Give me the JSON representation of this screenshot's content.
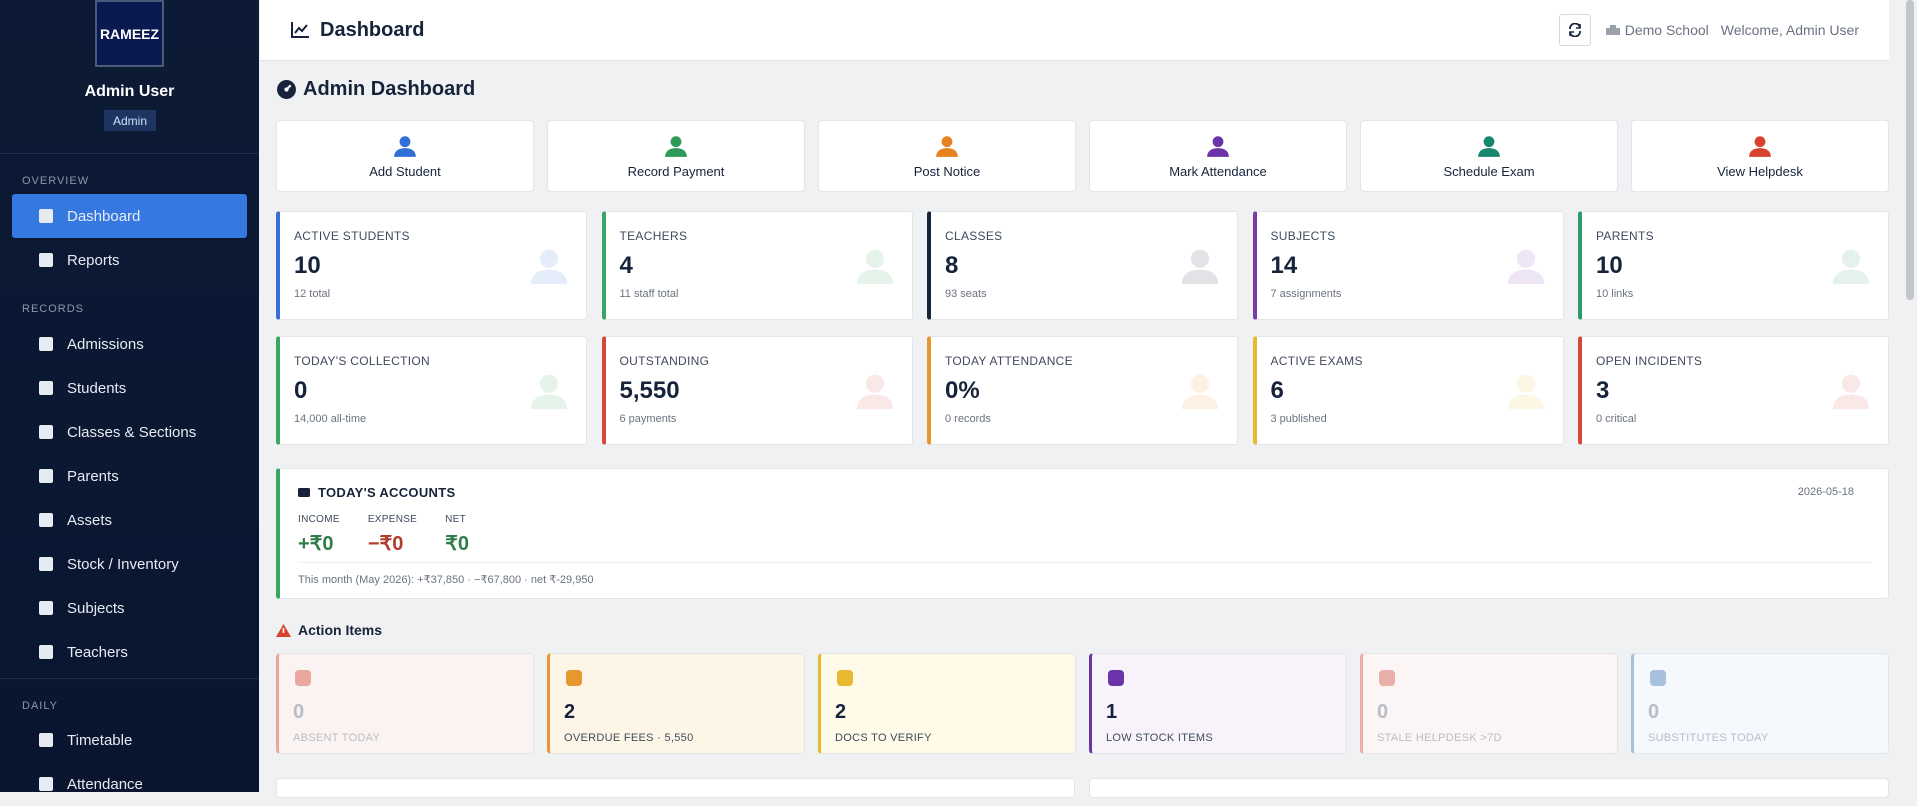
{
  "sidebar": {
    "logo": "RAMEEZ",
    "user_name": "Admin User",
    "role": "Admin",
    "sections": [
      {
        "title": "OVERVIEW",
        "items": [
          "Dashboard",
          "Reports"
        ]
      },
      {
        "title": "RECORDS",
        "items": [
          "Admissions",
          "Students",
          "Classes & Sections",
          "Parents",
          "Assets",
          "Stock / Inventory",
          "Subjects",
          "Teachers"
        ]
      },
      {
        "title": "DAILY",
        "items": [
          "Timetable",
          "Attendance"
        ]
      }
    ]
  },
  "header": {
    "title": "Dashboard",
    "school": "Demo School",
    "welcome": "Welcome, Admin User"
  },
  "page_title": "Admin Dashboard",
  "quick_actions": [
    {
      "label": "Add Student",
      "color": "#2f6fd6"
    },
    {
      "label": "Record Payment",
      "color": "#2e9a57"
    },
    {
      "label": "Post Notice",
      "color": "#e8821e"
    },
    {
      "label": "Mark Attendance",
      "color": "#6b34a8"
    },
    {
      "label": "Schedule Exam",
      "color": "#17876f"
    },
    {
      "label": "View Helpdesk",
      "color": "#d9412f"
    }
  ],
  "stats": [
    [
      {
        "label": "ACTIVE STUDENTS",
        "value": "10",
        "sub": "12 total",
        "color": "#3a6fd8"
      },
      {
        "label": "TEACHERS",
        "value": "4",
        "sub": "11 staff total",
        "color": "#3aa564"
      },
      {
        "label": "CLASSES",
        "value": "8",
        "sub": "93 seats",
        "color": "#16233b"
      },
      {
        "label": "SUBJECTS",
        "value": "14",
        "sub": "7 assignments",
        "color": "#7a3aa8"
      },
      {
        "label": "PARENTS",
        "value": "10",
        "sub": "10 links",
        "color": "#2f9a6a"
      }
    ],
    [
      {
        "label": "TODAY'S COLLECTION",
        "value": "0",
        "sub": "14,000 all-time",
        "color": "#3aa564"
      },
      {
        "label": "OUTSTANDING",
        "value": "5,550",
        "sub": "6 payments",
        "color": "#d9473a"
      },
      {
        "label": "TODAY ATTENDANCE",
        "value": "0%",
        "sub": "0 records",
        "color": "#e8962e"
      },
      {
        "label": "ACTIVE EXAMS",
        "value": "6",
        "sub": "3 published",
        "color": "#e8b92e"
      },
      {
        "label": "OPEN INCIDENTS",
        "value": "3",
        "sub": "0 critical",
        "color": "#d9473a"
      }
    ]
  ],
  "accounts": {
    "title": "TODAY'S ACCOUNTS",
    "date": "2026-05-18",
    "items": [
      {
        "label": "INCOME",
        "value": "+₹0",
        "color": "#2e7d4a"
      },
      {
        "label": "EXPENSE",
        "value": "−₹0",
        "color": "#b33a2a"
      },
      {
        "label": "NET",
        "value": "₹0",
        "color": "#2e7d4a"
      }
    ],
    "footer": "This month (May 2026): +₹37,850 · −₹67,800 · net ₹-29,950"
  },
  "action_items": {
    "title": "Action Items",
    "cards": [
      {
        "value": "0",
        "label": "ABSENT TODAY",
        "color": "#e8a8a0",
        "bg": "#fbf3f2",
        "faded": true
      },
      {
        "value": "2",
        "label": "OVERDUE FEES · 5,550",
        "color": "#e8962e",
        "bg": "#fdf6e6",
        "faded": false
      },
      {
        "value": "2",
        "label": "DOCS TO VERIFY",
        "color": "#e8b92e",
        "bg": "#fffbe8",
        "faded": false
      },
      {
        "value": "1",
        "label": "LOW STOCK ITEMS",
        "color": "#6b34a8",
        "bg": "#f8f3fb",
        "faded": false
      },
      {
        "value": "0",
        "label": "STALE HELPDESK >7D",
        "color": "#e8b0a8",
        "bg": "#fbf6f5",
        "faded": true
      },
      {
        "value": "0",
        "label": "SUBSTITUTES TODAY",
        "color": "#a8c0e0",
        "bg": "#f5f8fc",
        "faded": true
      }
    ]
  }
}
